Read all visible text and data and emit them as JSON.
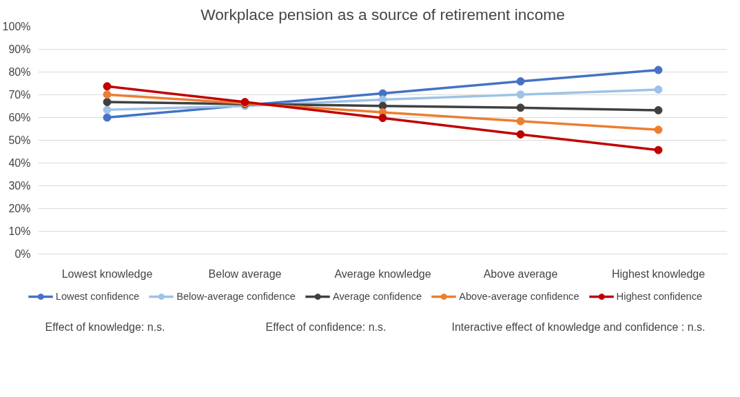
{
  "chart_data": {
    "type": "line",
    "title": "Workplace pension as a source of retirement income",
    "categories": [
      "Lowest knowledge",
      "Below average",
      "Average knowledge",
      "Above average",
      "Highest knowledge"
    ],
    "series": [
      {
        "name": "Lowest confidence",
        "color": "#4472c4",
        "values": [
          60,
          65.4,
          70.6,
          75.9,
          80.9
        ]
      },
      {
        "name": "Below-average confidence",
        "color": "#9dc3e6",
        "values": [
          63.4,
          65.1,
          67.9,
          70.1,
          72.3
        ]
      },
      {
        "name": "Average confidence",
        "color": "#404040",
        "values": [
          66.8,
          65.9,
          65.1,
          64.3,
          63.2
        ]
      },
      {
        "name": "Above-average confidence",
        "color": "#ed7d31",
        "values": [
          70.1,
          66.2,
          62.3,
          58.4,
          54.6
        ]
      },
      {
        "name": "Highest confidence",
        "color": "#c00000",
        "values": [
          73.7,
          66.8,
          59.8,
          52.6,
          45.7
        ]
      }
    ],
    "ylim": [
      0,
      100
    ],
    "yticks": [
      {
        "value": 0,
        "label": "0%"
      },
      {
        "value": 10,
        "label": "10%"
      },
      {
        "value": 20,
        "label": "20%"
      },
      {
        "value": 30,
        "label": "30%"
      },
      {
        "value": 40,
        "label": "40%"
      },
      {
        "value": 50,
        "label": "50%"
      },
      {
        "value": 60,
        "label": "60%"
      },
      {
        "value": 70,
        "label": "70%"
      },
      {
        "value": 80,
        "label": "80%"
      },
      {
        "value": 90,
        "label": "90%"
      },
      {
        "value": 100,
        "label": "100%"
      }
    ],
    "grid": "y",
    "legend": "bottom",
    "marker": "circle",
    "line_style": "solid",
    "annotations": [
      "Effect of knowledge: n.s.",
      "Effect of confidence: n.s.",
      "Interactive effect of knowledge and confidence : n.s."
    ]
  }
}
